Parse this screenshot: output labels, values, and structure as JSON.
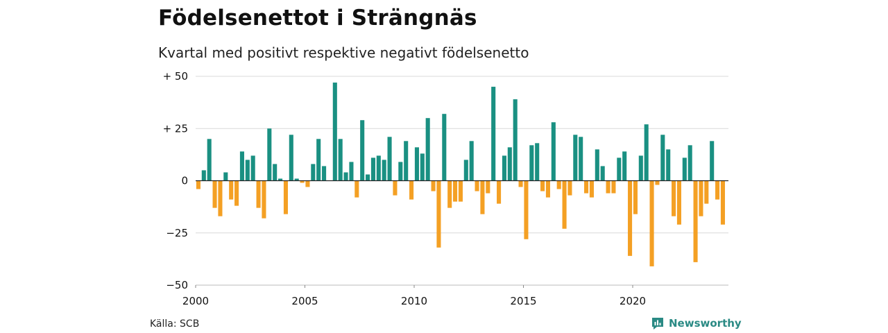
{
  "title": "Födelsenettot i Strängnäs",
  "subtitle": "Kvartal med positivt respektive negativt födelsenetto",
  "source": "Källa: SCB",
  "brand": "Newsworthy",
  "colors": {
    "positive": "#1a9082",
    "negative": "#f4a024",
    "grid": "#d9d9d9",
    "brand": "#2a8a84"
  },
  "chart_data": {
    "type": "bar",
    "title": "Födelsenettot i Strängnäs",
    "subtitle": "Kvartal med positivt respektive negativt födelsenetto",
    "xlabel": "",
    "ylabel": "",
    "ylim": [
      -50,
      50
    ],
    "yticks": [
      {
        "value": 50,
        "label": "+ 50"
      },
      {
        "value": 25,
        "label": "+ 25"
      },
      {
        "value": 0,
        "label": "0"
      },
      {
        "value": -25,
        "label": "−25"
      },
      {
        "value": -50,
        "label": "−50"
      }
    ],
    "x_start": "2000 Q1",
    "xticks": [
      "2000",
      "2005",
      "2010",
      "2015",
      "2020"
    ],
    "grid": true,
    "values": [
      -4,
      5,
      20,
      -13,
      -17,
      4,
      -9,
      -12,
      14,
      10,
      12,
      -13,
      -18,
      25,
      8,
      1,
      -16,
      22,
      1,
      -1,
      -3,
      8,
      20,
      7,
      0,
      47,
      20,
      4,
      9,
      -8,
      29,
      3,
      11,
      12,
      10,
      21,
      -7,
      9,
      19,
      -9,
      16,
      13,
      30,
      -5,
      -32,
      32,
      -13,
      -10,
      -10,
      10,
      19,
      -5,
      -16,
      -6,
      45,
      -11,
      12,
      16,
      39,
      -3,
      -28,
      17,
      18,
      -5,
      -8,
      28,
      -4,
      -23,
      -7,
      22,
      21,
      -6,
      -8,
      15,
      7,
      -6,
      -6,
      11,
      14,
      -36,
      -16,
      12,
      27,
      -41,
      -2,
      22,
      15,
      -17,
      -21,
      11,
      17,
      -39,
      -17,
      -11,
      19,
      -9,
      -21
    ]
  }
}
